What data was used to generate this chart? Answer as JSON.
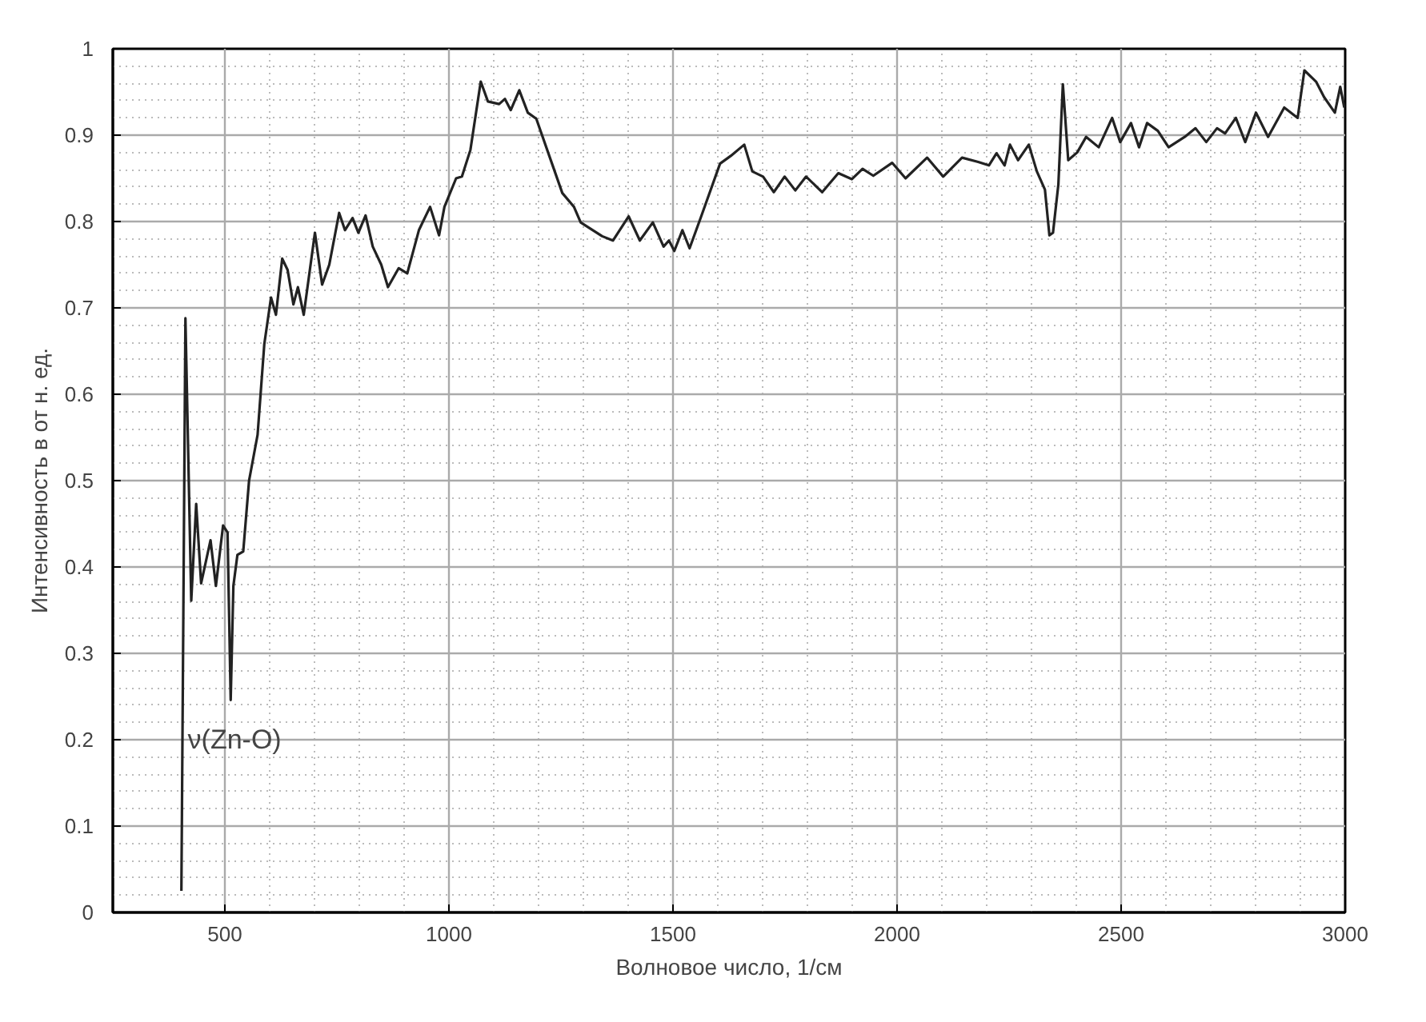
{
  "chart_data": {
    "type": "line",
    "xlabel": "Волновое число, 1/см",
    "ylabel": "Интенсивность в от н. ед.",
    "xlim": [
      250,
      3000
    ],
    "xticks": [
      500,
      1000,
      1500,
      2000,
      2500,
      3000
    ],
    "ylim": [
      0,
      1
    ],
    "yticks": [
      0,
      0.1,
      0.2,
      0.3,
      0.4,
      0.5,
      0.6,
      0.7,
      0.8,
      0.9,
      1
    ],
    "grid": true,
    "marker": "none",
    "line_style": "solid",
    "annotations": [
      {
        "text": "ν(Zn-O)",
        "x": 410,
        "y": 0.2
      }
    ],
    "series": [
      {
        "color": "#222222",
        "x": [
          403,
          412,
          425,
          436,
          447,
          468,
          480,
          496,
          506,
          513,
          519,
          528,
          541,
          554,
          573,
          588,
          603,
          614,
          628,
          640,
          653,
          663,
          676,
          701,
          717,
          733,
          755,
          768,
          785,
          798,
          814,
          830,
          849,
          864,
          888,
          907,
          933,
          958,
          978,
          990,
          1016,
          1029,
          1048,
          1071,
          1087,
          1112,
          1125,
          1138,
          1157,
          1176,
          1195,
          1228,
          1253,
          1279,
          1294,
          1312,
          1342,
          1366,
          1401,
          1426,
          1455,
          1479,
          1491,
          1503,
          1521,
          1537,
          1563,
          1605,
          1629,
          1659,
          1677,
          1701,
          1725,
          1749,
          1773,
          1797,
          1833,
          1869,
          1899,
          1923,
          1947,
          1989,
          2019,
          2067,
          2103,
          2145,
          2181,
          2205,
          2222,
          2240,
          2252,
          2270,
          2294,
          2312,
          2330,
          2340,
          2348,
          2360,
          2370,
          2382,
          2402,
          2422,
          2450,
          2480,
          2498,
          2522,
          2540,
          2558,
          2582,
          2606,
          2642,
          2666,
          2690,
          2714,
          2732,
          2756,
          2777,
          2801,
          2828,
          2864,
          2894,
          2909,
          2935,
          2953,
          2977,
          2989,
          2998
        ],
        "values": [
          0.025,
          0.688,
          0.361,
          0.473,
          0.381,
          0.431,
          0.378,
          0.448,
          0.44,
          0.246,
          0.378,
          0.414,
          0.418,
          0.5,
          0.553,
          0.658,
          0.712,
          0.692,
          0.757,
          0.744,
          0.704,
          0.724,
          0.692,
          0.787,
          0.727,
          0.75,
          0.81,
          0.79,
          0.804,
          0.787,
          0.807,
          0.771,
          0.75,
          0.724,
          0.746,
          0.74,
          0.79,
          0.817,
          0.784,
          0.817,
          0.85,
          0.852,
          0.883,
          0.962,
          0.939,
          0.936,
          0.942,
          0.929,
          0.952,
          0.926,
          0.919,
          0.87,
          0.833,
          0.817,
          0.799,
          0.793,
          0.783,
          0.778,
          0.806,
          0.778,
          0.799,
          0.771,
          0.778,
          0.766,
          0.79,
          0.769,
          0.806,
          0.867,
          0.876,
          0.889,
          0.858,
          0.852,
          0.834,
          0.852,
          0.836,
          0.852,
          0.834,
          0.856,
          0.849,
          0.861,
          0.853,
          0.868,
          0.85,
          0.874,
          0.852,
          0.874,
          0.869,
          0.865,
          0.879,
          0.865,
          0.889,
          0.871,
          0.889,
          0.858,
          0.837,
          0.784,
          0.787,
          0.843,
          0.959,
          0.871,
          0.88,
          0.898,
          0.886,
          0.92,
          0.892,
          0.914,
          0.886,
          0.914,
          0.905,
          0.886,
          0.898,
          0.908,
          0.892,
          0.908,
          0.902,
          0.92,
          0.892,
          0.926,
          0.898,
          0.932,
          0.92,
          0.975,
          0.962,
          0.944,
          0.926,
          0.956,
          0.932
        ]
      }
    ]
  }
}
